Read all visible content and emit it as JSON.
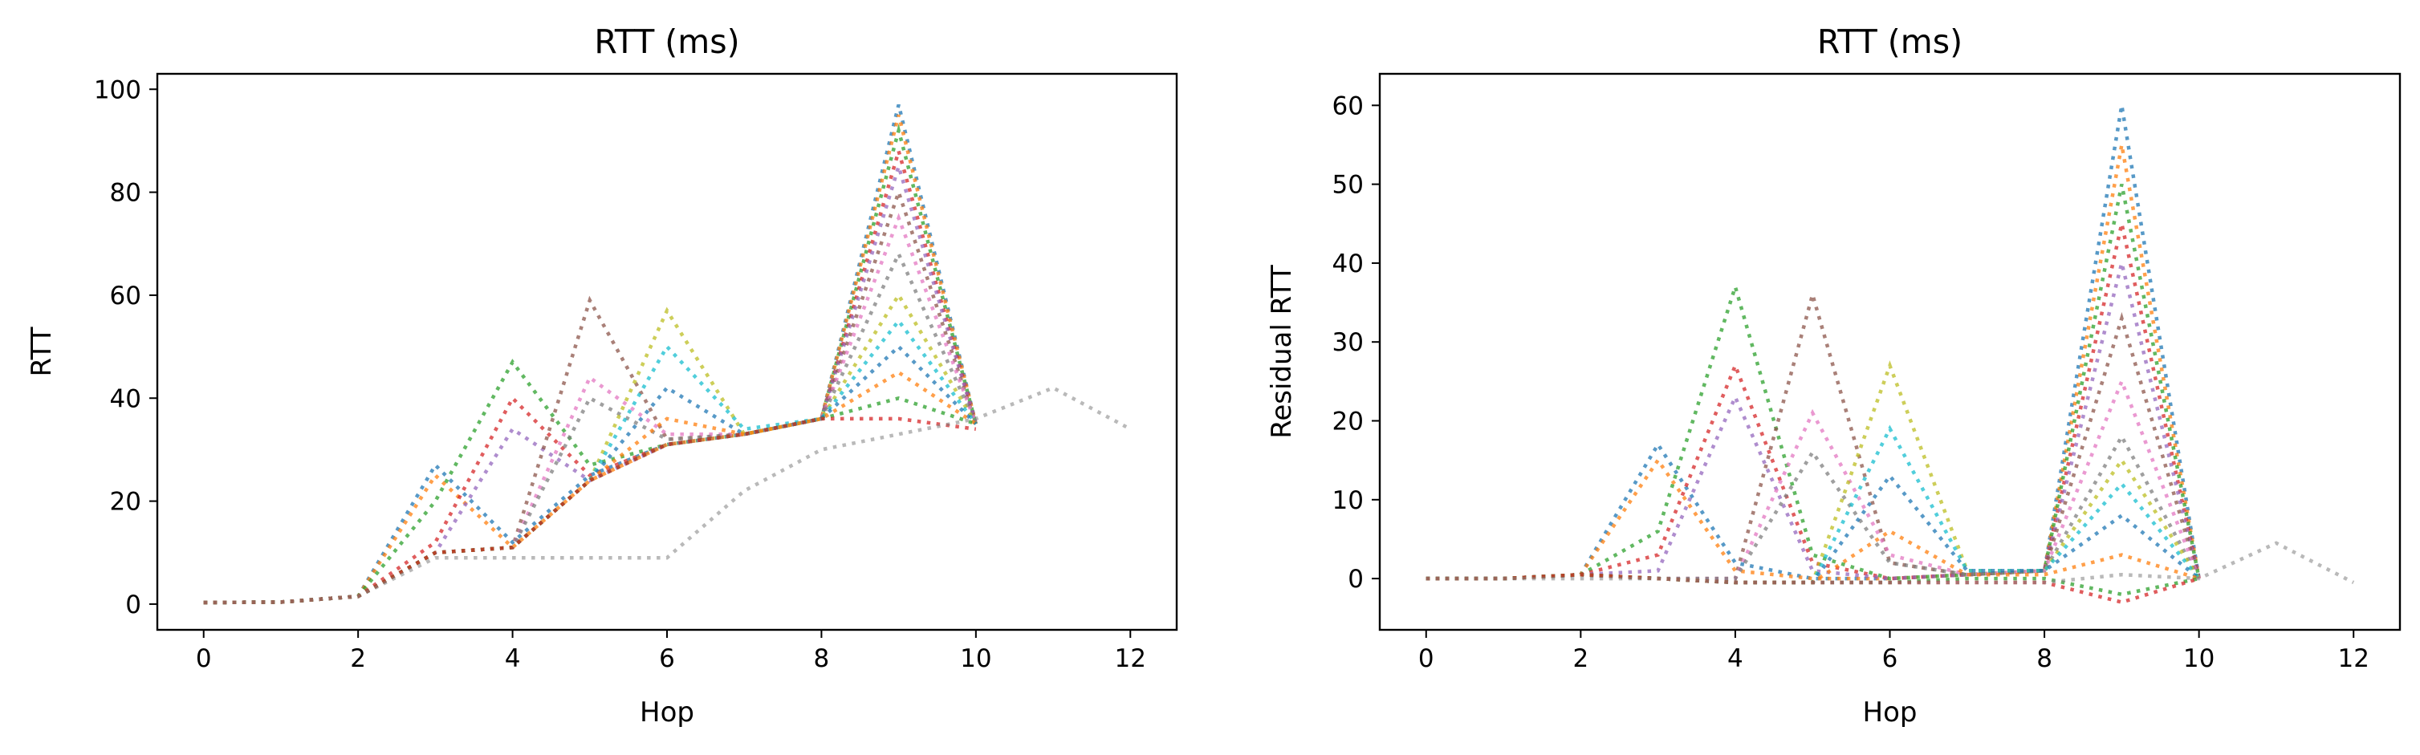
{
  "chart_data": [
    {
      "type": "line",
      "title": "RTT (ms)",
      "xlabel": "Hop",
      "ylabel": "RTT",
      "xlim": [
        -0.6,
        12.6
      ],
      "ylim": [
        -5,
        103
      ],
      "xticks": [
        0,
        2,
        4,
        6,
        8,
        10,
        12
      ],
      "yticks": [
        0,
        20,
        40,
        60,
        80,
        100
      ],
      "grid": false,
      "line_style": "dotted",
      "series_colors": [
        "#1f77b4",
        "#ff7f0e",
        "#2ca02c",
        "#d62728",
        "#9467bd",
        "#8c564b",
        "#e377c2",
        "#7f7f7f",
        "#bcbd22",
        "#17becf"
      ],
      "series": [
        {
          "x": [
            0,
            1,
            2,
            3,
            4,
            5,
            6,
            7,
            8,
            9,
            10
          ],
          "values": [
            0.3,
            0.4,
            1.5,
            27,
            12,
            25,
            31,
            33,
            36,
            97,
            35
          ]
        },
        {
          "x": [
            0,
            1,
            2,
            3,
            4,
            5,
            6,
            7,
            8,
            9,
            10
          ],
          "values": [
            0.3,
            0.4,
            1.5,
            25,
            11,
            24,
            31,
            33,
            36,
            95,
            35
          ]
        },
        {
          "x": [
            0,
            1,
            2,
            3,
            4,
            5,
            6,
            7,
            8,
            9,
            10
          ],
          "values": [
            0.3,
            0.4,
            1.5,
            20,
            47,
            27,
            31,
            33,
            36,
            92,
            35
          ]
        },
        {
          "x": [
            0,
            1,
            2,
            3,
            4,
            5,
            6,
            7,
            8,
            9,
            10
          ],
          "values": [
            0.3,
            0.4,
            1.5,
            12,
            40,
            25,
            31,
            33,
            36,
            88,
            35
          ]
        },
        {
          "x": [
            0,
            1,
            2,
            3,
            4,
            5,
            6,
            7,
            8,
            9,
            10
          ],
          "values": [
            0.3,
            0.4,
            1.5,
            10,
            34,
            24,
            31,
            33,
            36,
            85,
            35
          ]
        },
        {
          "x": [
            0,
            1,
            2,
            3,
            4,
            5,
            6,
            7,
            8,
            9,
            10
          ],
          "values": [
            0.3,
            0.4,
            1.5,
            10,
            11,
            59,
            32,
            33,
            36,
            80,
            35
          ]
        },
        {
          "x": [
            0,
            1,
            2,
            3,
            4,
            5,
            6,
            7,
            8,
            9,
            10
          ],
          "values": [
            0.3,
            0.4,
            1.5,
            10,
            11,
            44,
            33,
            33,
            36,
            75,
            35
          ]
        },
        {
          "x": [
            0,
            1,
            2,
            3,
            4,
            5,
            6,
            7,
            8,
            9,
            10
          ],
          "values": [
            0.3,
            0.4,
            1.5,
            10,
            11,
            40,
            32,
            33,
            36,
            68,
            35
          ]
        },
        {
          "x": [
            0,
            1,
            2,
            3,
            4,
            5,
            6,
            7,
            8,
            9,
            10
          ],
          "values": [
            0.3,
            0.4,
            1.5,
            10,
            11,
            24,
            57,
            33,
            36,
            60,
            35
          ]
        },
        {
          "x": [
            0,
            1,
            2,
            3,
            4,
            5,
            6,
            7,
            8,
            9,
            10
          ],
          "values": [
            0.3,
            0.4,
            1.5,
            10,
            11,
            24,
            50,
            34,
            36,
            55,
            35
          ]
        },
        {
          "x": [
            0,
            1,
            2,
            3,
            4,
            5,
            6,
            7,
            8,
            9,
            10
          ],
          "values": [
            0.3,
            0.4,
            1.5,
            10,
            11,
            24,
            42,
            33,
            36,
            50,
            35
          ]
        },
        {
          "x": [
            0,
            1,
            2,
            3,
            4,
            5,
            6,
            7,
            8,
            9,
            10
          ],
          "values": [
            0.3,
            0.4,
            1.5,
            10,
            11,
            24,
            36,
            33,
            36,
            45,
            35
          ]
        },
        {
          "x": [
            0,
            1,
            2,
            3,
            4,
            5,
            6,
            7,
            8,
            9,
            10
          ],
          "values": [
            0.3,
            0.4,
            1.5,
            10,
            11,
            24,
            31,
            33,
            36,
            40,
            35
          ]
        },
        {
          "x": [
            0,
            1,
            2,
            3,
            4,
            5,
            6,
            7,
            8,
            9,
            10
          ],
          "values": [
            0.3,
            0.4,
            1.5,
            10,
            11,
            24,
            31,
            33,
            36,
            36,
            34
          ]
        },
        {
          "x": [
            0,
            1,
            2,
            3,
            4,
            5,
            6,
            7,
            8,
            9,
            10,
            11,
            12
          ],
          "values": [
            0.3,
            0.4,
            1.5,
            9,
            9,
            9,
            9,
            22,
            30,
            33,
            36,
            42,
            34
          ]
        }
      ]
    },
    {
      "type": "line",
      "title": "RTT (ms)",
      "xlabel": "Hop",
      "ylabel": "Residual RTT",
      "xlim": [
        -0.6,
        12.6
      ],
      "ylim": [
        -6.5,
        64
      ],
      "xticks": [
        0,
        2,
        4,
        6,
        8,
        10,
        12
      ],
      "yticks": [
        0,
        10,
        20,
        30,
        40,
        50,
        60
      ],
      "grid": false,
      "line_style": "dotted",
      "series_colors": [
        "#1f77b4",
        "#ff7f0e",
        "#2ca02c",
        "#d62728",
        "#9467bd",
        "#8c564b",
        "#e377c2",
        "#7f7f7f",
        "#bcbd22",
        "#17becf"
      ],
      "series": [
        {
          "x": [
            0,
            1,
            2,
            3,
            4,
            5,
            6,
            7,
            8,
            9,
            10
          ],
          "values": [
            0,
            0,
            0.5,
            17,
            2,
            0,
            0,
            0.5,
            1,
            60,
            0
          ]
        },
        {
          "x": [
            0,
            1,
            2,
            3,
            4,
            5,
            6,
            7,
            8,
            9,
            10
          ],
          "values": [
            0,
            0,
            0.5,
            15,
            1,
            0,
            0,
            0.5,
            1,
            55,
            0
          ]
        },
        {
          "x": [
            0,
            1,
            2,
            3,
            4,
            5,
            6,
            7,
            8,
            9,
            10
          ],
          "values": [
            0,
            0,
            0.5,
            6,
            37,
            3,
            0,
            0.5,
            1,
            50,
            0
          ]
        },
        {
          "x": [
            0,
            1,
            2,
            3,
            4,
            5,
            6,
            7,
            8,
            9,
            10
          ],
          "values": [
            0,
            0,
            0.5,
            3,
            27,
            2,
            0,
            0.5,
            1,
            45,
            0
          ]
        },
        {
          "x": [
            0,
            1,
            2,
            3,
            4,
            5,
            6,
            7,
            8,
            9,
            10
          ],
          "values": [
            0,
            0,
            0.5,
            1,
            23,
            1,
            0,
            0.5,
            1,
            40,
            0
          ]
        },
        {
          "x": [
            0,
            1,
            2,
            3,
            4,
            5,
            6,
            7,
            8,
            9,
            10
          ],
          "values": [
            0,
            0,
            0.5,
            0,
            0,
            36,
            2,
            0.5,
            1,
            33,
            0
          ]
        },
        {
          "x": [
            0,
            1,
            2,
            3,
            4,
            5,
            6,
            7,
            8,
            9,
            10
          ],
          "values": [
            0,
            0,
            0.5,
            0,
            0,
            21,
            3,
            0.5,
            1,
            25,
            0
          ]
        },
        {
          "x": [
            0,
            1,
            2,
            3,
            4,
            5,
            6,
            7,
            8,
            9,
            10
          ],
          "values": [
            0,
            0,
            0.5,
            0,
            0,
            16,
            2,
            0.5,
            1,
            18,
            0
          ]
        },
        {
          "x": [
            0,
            1,
            2,
            3,
            4,
            5,
            6,
            7,
            8,
            9,
            10
          ],
          "values": [
            0,
            0,
            0.5,
            0,
            -0.5,
            -0.5,
            27,
            1,
            1,
            15,
            0
          ]
        },
        {
          "x": [
            0,
            1,
            2,
            3,
            4,
            5,
            6,
            7,
            8,
            9,
            10
          ],
          "values": [
            0,
            0,
            0.5,
            0,
            -0.5,
            -0.5,
            19,
            1,
            1,
            12,
            0
          ]
        },
        {
          "x": [
            0,
            1,
            2,
            3,
            4,
            5,
            6,
            7,
            8,
            9,
            10
          ],
          "values": [
            0,
            0,
            0.5,
            0,
            -0.5,
            -0.5,
            13,
            1,
            1,
            8,
            0
          ]
        },
        {
          "x": [
            0,
            1,
            2,
            3,
            4,
            5,
            6,
            7,
            8,
            9,
            10
          ],
          "values": [
            0,
            0,
            0.5,
            0,
            -0.5,
            -0.5,
            6,
            0.5,
            0.5,
            3,
            0
          ]
        },
        {
          "x": [
            0,
            1,
            2,
            3,
            4,
            5,
            6,
            7,
            8,
            9,
            10
          ],
          "values": [
            0,
            0,
            0.5,
            0,
            -0.5,
            -0.5,
            -0.5,
            0,
            0,
            -2,
            0
          ]
        },
        {
          "x": [
            0,
            1,
            2,
            3,
            4,
            5,
            6,
            7,
            8,
            9,
            10
          ],
          "values": [
            0,
            0,
            0.5,
            0,
            -0.5,
            -0.5,
            -0.5,
            -0.5,
            -0.5,
            -3,
            0
          ]
        },
        {
          "x": [
            0,
            1,
            2,
            3,
            4,
            5,
            6,
            7,
            8,
            9,
            10,
            11,
            12
          ],
          "values": [
            0,
            0,
            0,
            0,
            -0.5,
            -0.5,
            -0.5,
            -0.5,
            -0.5,
            0.5,
            0,
            4.5,
            -0.5
          ]
        }
      ]
    }
  ]
}
